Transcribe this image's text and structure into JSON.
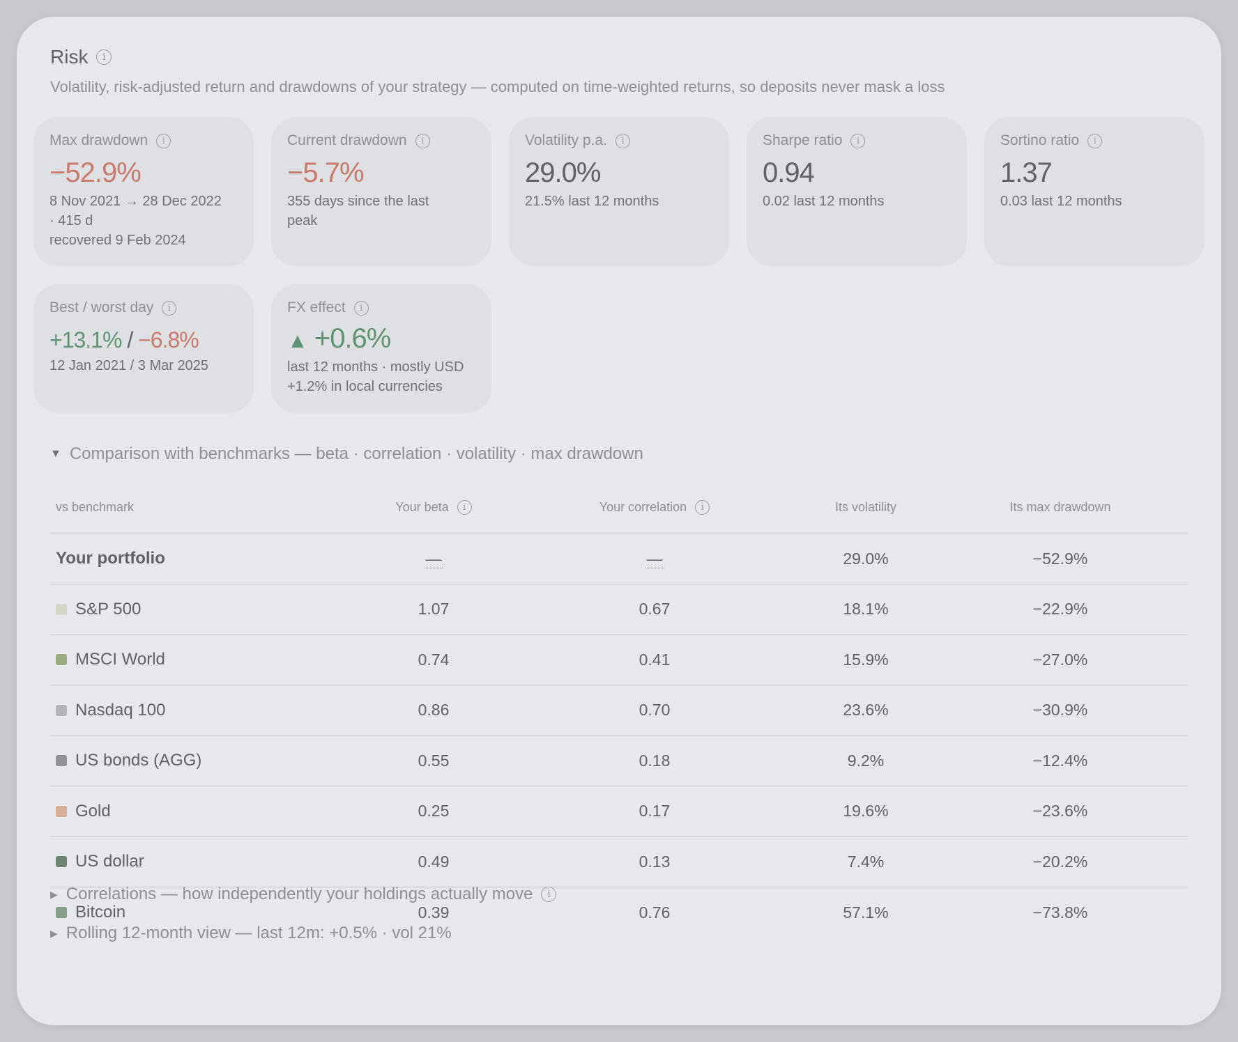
{
  "header": {
    "title": "Risk",
    "subtitle": "Volatility, risk-adjusted return and drawdowns of your strategy — computed on time-weighted returns, so deposits never mask a loss"
  },
  "cards": {
    "max_drawdown": {
      "label": "Max drawdown",
      "value": "−52.9%",
      "sub_line1": "8 Nov 2021 → 28 Dec 2022",
      "sub_line2": "· 415 d",
      "sub_line3": "recovered 9 Feb 2024"
    },
    "current_drawdown": {
      "label": "Current drawdown",
      "value": "−5.7%",
      "sub_line1": "355 days since the last",
      "sub_line2": "peak"
    },
    "volatility": {
      "label": "Volatility p.a.",
      "value": "29.0%",
      "sub": "21.5% last 12 months"
    },
    "sharpe": {
      "label": "Sharpe ratio",
      "value": "0.94",
      "sub": "0.02 last 12 months"
    },
    "sortino": {
      "label": "Sortino ratio",
      "value": "1.37",
      "sub": "0.03 last 12 months"
    },
    "best_worst": {
      "label": "Best / worst day",
      "best": "+13.1%",
      "separator": "/",
      "worst": "−6.8%",
      "sub": "12 Jan 2021 / 3 Mar 2025"
    },
    "fx_effect": {
      "label": "FX effect",
      "arrow": "▲",
      "value": "+0.6%",
      "sub_line1": "last 12 months · mostly USD",
      "sub_line2": "+1.2% in local currencies"
    }
  },
  "benchmarks": {
    "toggle_label": "Comparison with benchmarks — beta · correlation · volatility · max drawdown",
    "columns": [
      "vs benchmark",
      "Your beta",
      "Your correlation",
      "Its volatility",
      "Its max drawdown"
    ],
    "portfolio_row": {
      "name": "Your portfolio",
      "beta": "—",
      "correlation": "—",
      "volatility": "29.0%",
      "max_drawdown": "−52.9%"
    },
    "rows": [
      {
        "name": "S&P 500",
        "color": "#d3d7c5",
        "beta": "1.07",
        "correlation": "0.67",
        "volatility": "18.1%",
        "max_drawdown": "−22.9%"
      },
      {
        "name": "MSCI World",
        "color": "#9bad7f",
        "beta": "0.74",
        "correlation": "0.41",
        "volatility": "15.9%",
        "max_drawdown": "−27.0%"
      },
      {
        "name": "Nasdaq 100",
        "color": "#b3b4b7",
        "beta": "0.86",
        "correlation": "0.70",
        "volatility": "23.6%",
        "max_drawdown": "−30.9%"
      },
      {
        "name": "US bonds (AGG)",
        "color": "#929397",
        "beta": "0.55",
        "correlation": "0.18",
        "volatility": "9.2%",
        "max_drawdown": "−12.4%"
      },
      {
        "name": "Gold",
        "color": "#d8ae99",
        "beta": "0.25",
        "correlation": "0.17",
        "volatility": "19.6%",
        "max_drawdown": "−23.6%"
      },
      {
        "name": "US dollar",
        "color": "#6e8572",
        "beta": "0.49",
        "correlation": "0.13",
        "volatility": "7.4%",
        "max_drawdown": "−20.2%"
      },
      {
        "name": "Bitcoin",
        "color": "#84a08b",
        "beta": "0.39",
        "correlation": "0.76",
        "volatility": "57.1%",
        "max_drawdown": "−73.8%"
      }
    ]
  },
  "sections": {
    "correlations_label": "Correlations — how independently your holdings actually move",
    "rolling_label": "Rolling 12-month view — last 12m: +0.5% · vol 21%"
  },
  "icons": {
    "info": "info-icon",
    "expand": "triangle-down-icon",
    "collapse": "triangle-right-icon"
  },
  "colors": {
    "negative": "#c97a6d",
    "positive": "#5f9473"
  }
}
